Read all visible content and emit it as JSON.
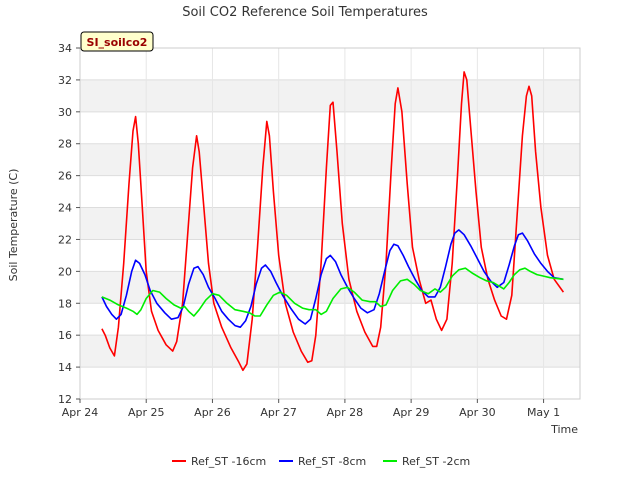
{
  "chart_data": {
    "type": "line",
    "title": "Soil CO2 Reference Soil Temperatures",
    "xlabel": "Time",
    "ylabel": "Soil Temperature (C)",
    "site_label": "SI_soilco2",
    "ylim": [
      12,
      34
    ],
    "yticks": [
      12,
      14,
      16,
      18,
      20,
      22,
      24,
      26,
      28,
      30,
      32,
      34
    ],
    "xlim": [
      0,
      7.55
    ],
    "xticks": [
      {
        "x": 0,
        "label": "Apr 24"
      },
      {
        "x": 1,
        "label": "Apr 25"
      },
      {
        "x": 2,
        "label": "Apr 26"
      },
      {
        "x": 3,
        "label": "Apr 27"
      },
      {
        "x": 4,
        "label": "Apr 28"
      },
      {
        "x": 5,
        "label": "Apr 29"
      },
      {
        "x": 6,
        "label": "Apr 30"
      },
      {
        "x": 7,
        "label": "May 1"
      }
    ],
    "grid": true,
    "legend_position": "bottom",
    "series": [
      {
        "name": "Ref_ST -16cm",
        "color": "#ff0000",
        "points": [
          [
            0.33,
            16.4
          ],
          [
            0.38,
            16.0
          ],
          [
            0.45,
            15.2
          ],
          [
            0.52,
            14.7
          ],
          [
            0.58,
            16.5
          ],
          [
            0.66,
            20.5
          ],
          [
            0.74,
            25.5
          ],
          [
            0.8,
            28.8
          ],
          [
            0.84,
            29.7
          ],
          [
            0.88,
            28.0
          ],
          [
            0.94,
            24.0
          ],
          [
            1.0,
            20.0
          ],
          [
            1.08,
            17.5
          ],
          [
            1.18,
            16.3
          ],
          [
            1.3,
            15.4
          ],
          [
            1.4,
            15.0
          ],
          [
            1.46,
            15.6
          ],
          [
            1.55,
            18.0
          ],
          [
            1.62,
            22.0
          ],
          [
            1.7,
            26.5
          ],
          [
            1.76,
            28.5
          ],
          [
            1.8,
            27.5
          ],
          [
            1.86,
            24.5
          ],
          [
            1.94,
            20.5
          ],
          [
            2.02,
            18.0
          ],
          [
            2.14,
            16.5
          ],
          [
            2.28,
            15.2
          ],
          [
            2.4,
            14.3
          ],
          [
            2.46,
            13.8
          ],
          [
            2.52,
            14.2
          ],
          [
            2.6,
            17.0
          ],
          [
            2.68,
            21.5
          ],
          [
            2.76,
            26.5
          ],
          [
            2.82,
            29.4
          ],
          [
            2.86,
            28.5
          ],
          [
            2.92,
            25.0
          ],
          [
            3.0,
            21.0
          ],
          [
            3.1,
            18.0
          ],
          [
            3.22,
            16.2
          ],
          [
            3.34,
            15.0
          ],
          [
            3.44,
            14.3
          ],
          [
            3.5,
            14.4
          ],
          [
            3.56,
            16.0
          ],
          [
            3.64,
            20.5
          ],
          [
            3.72,
            26.5
          ],
          [
            3.78,
            30.4
          ],
          [
            3.82,
            30.6
          ],
          [
            3.88,
            27.5
          ],
          [
            3.96,
            23.0
          ],
          [
            4.06,
            19.5
          ],
          [
            4.18,
            17.5
          ],
          [
            4.3,
            16.2
          ],
          [
            4.42,
            15.3
          ],
          [
            4.48,
            15.3
          ],
          [
            4.54,
            16.5
          ],
          [
            4.62,
            20.5
          ],
          [
            4.7,
            26.5
          ],
          [
            4.76,
            30.5
          ],
          [
            4.8,
            31.5
          ],
          [
            4.86,
            30.0
          ],
          [
            4.94,
            25.5
          ],
          [
            5.02,
            21.5
          ],
          [
            5.12,
            19.5
          ],
          [
            5.22,
            18.0
          ],
          [
            5.3,
            18.2
          ],
          [
            5.38,
            17.0
          ],
          [
            5.46,
            16.3
          ],
          [
            5.54,
            17.0
          ],
          [
            5.62,
            20.5
          ],
          [
            5.7,
            26.0
          ],
          [
            5.76,
            30.5
          ],
          [
            5.8,
            32.5
          ],
          [
            5.84,
            32.0
          ],
          [
            5.9,
            29.0
          ],
          [
            5.98,
            25.0
          ],
          [
            6.06,
            21.5
          ],
          [
            6.16,
            19.5
          ],
          [
            6.26,
            18.2
          ],
          [
            6.36,
            17.2
          ],
          [
            6.44,
            17.0
          ],
          [
            6.52,
            18.5
          ],
          [
            6.6,
            23.5
          ],
          [
            6.68,
            28.5
          ],
          [
            6.74,
            31.0
          ],
          [
            6.78,
            31.6
          ],
          [
            6.82,
            31.0
          ],
          [
            6.88,
            27.5
          ],
          [
            6.96,
            24.0
          ],
          [
            7.06,
            21.0
          ],
          [
            7.16,
            19.5
          ],
          [
            7.3,
            18.7
          ]
        ]
      },
      {
        "name": "Ref_ST -8cm",
        "color": "#0000ff",
        "points": [
          [
            0.33,
            18.4
          ],
          [
            0.4,
            17.8
          ],
          [
            0.48,
            17.3
          ],
          [
            0.55,
            17.0
          ],
          [
            0.62,
            17.3
          ],
          [
            0.7,
            18.5
          ],
          [
            0.78,
            20.0
          ],
          [
            0.84,
            20.7
          ],
          [
            0.9,
            20.5
          ],
          [
            0.98,
            19.8
          ],
          [
            1.06,
            18.8
          ],
          [
            1.16,
            18.0
          ],
          [
            1.28,
            17.4
          ],
          [
            1.38,
            17.0
          ],
          [
            1.48,
            17.1
          ],
          [
            1.56,
            17.8
          ],
          [
            1.64,
            19.2
          ],
          [
            1.72,
            20.2
          ],
          [
            1.78,
            20.3
          ],
          [
            1.86,
            19.8
          ],
          [
            1.94,
            19.0
          ],
          [
            2.04,
            18.3
          ],
          [
            2.14,
            17.5
          ],
          [
            2.24,
            17.0
          ],
          [
            2.34,
            16.6
          ],
          [
            2.42,
            16.5
          ],
          [
            2.5,
            16.9
          ],
          [
            2.58,
            17.8
          ],
          [
            2.66,
            19.2
          ],
          [
            2.74,
            20.2
          ],
          [
            2.8,
            20.4
          ],
          [
            2.88,
            20.0
          ],
          [
            2.96,
            19.3
          ],
          [
            3.06,
            18.5
          ],
          [
            3.18,
            17.7
          ],
          [
            3.3,
            17.0
          ],
          [
            3.4,
            16.7
          ],
          [
            3.48,
            17.0
          ],
          [
            3.56,
            18.3
          ],
          [
            3.64,
            19.8
          ],
          [
            3.72,
            20.8
          ],
          [
            3.78,
            21.0
          ],
          [
            3.86,
            20.6
          ],
          [
            3.94,
            19.8
          ],
          [
            4.04,
            19.0
          ],
          [
            4.14,
            18.3
          ],
          [
            4.24,
            17.7
          ],
          [
            4.34,
            17.4
          ],
          [
            4.44,
            17.6
          ],
          [
            4.52,
            18.6
          ],
          [
            4.6,
            20.0
          ],
          [
            4.68,
            21.3
          ],
          [
            4.74,
            21.7
          ],
          [
            4.8,
            21.6
          ],
          [
            4.88,
            21.0
          ],
          [
            4.96,
            20.3
          ],
          [
            5.06,
            19.5
          ],
          [
            5.16,
            18.8
          ],
          [
            5.26,
            18.4
          ],
          [
            5.36,
            18.4
          ],
          [
            5.44,
            19.0
          ],
          [
            5.52,
            20.3
          ],
          [
            5.6,
            21.7
          ],
          [
            5.66,
            22.4
          ],
          [
            5.72,
            22.6
          ],
          [
            5.8,
            22.3
          ],
          [
            5.9,
            21.6
          ],
          [
            6.0,
            20.8
          ],
          [
            6.1,
            20.0
          ],
          [
            6.2,
            19.4
          ],
          [
            6.3,
            19.0
          ],
          [
            6.4,
            19.3
          ],
          [
            6.48,
            20.4
          ],
          [
            6.56,
            21.6
          ],
          [
            6.62,
            22.3
          ],
          [
            6.68,
            22.4
          ],
          [
            6.76,
            21.9
          ],
          [
            6.86,
            21.1
          ],
          [
            6.96,
            20.5
          ],
          [
            7.06,
            20.0
          ],
          [
            7.16,
            19.6
          ],
          [
            7.3,
            19.5
          ]
        ]
      },
      {
        "name": "Ref_ST -2cm",
        "color": "#00ee00",
        "points": [
          [
            0.33,
            18.4
          ],
          [
            0.45,
            18.2
          ],
          [
            0.58,
            17.9
          ],
          [
            0.7,
            17.7
          ],
          [
            0.8,
            17.5
          ],
          [
            0.86,
            17.3
          ],
          [
            0.92,
            17.6
          ],
          [
            1.0,
            18.3
          ],
          [
            1.1,
            18.8
          ],
          [
            1.2,
            18.7
          ],
          [
            1.3,
            18.3
          ],
          [
            1.42,
            17.9
          ],
          [
            1.52,
            17.7
          ],
          [
            1.58,
            17.8
          ],
          [
            1.64,
            17.5
          ],
          [
            1.72,
            17.2
          ],
          [
            1.8,
            17.6
          ],
          [
            1.9,
            18.2
          ],
          [
            2.0,
            18.6
          ],
          [
            2.1,
            18.5
          ],
          [
            2.22,
            18.0
          ],
          [
            2.34,
            17.6
          ],
          [
            2.46,
            17.5
          ],
          [
            2.56,
            17.4
          ],
          [
            2.64,
            17.2
          ],
          [
            2.72,
            17.2
          ],
          [
            2.82,
            17.9
          ],
          [
            2.92,
            18.5
          ],
          [
            3.02,
            18.7
          ],
          [
            3.12,
            18.5
          ],
          [
            3.24,
            18.0
          ],
          [
            3.36,
            17.7
          ],
          [
            3.46,
            17.6
          ],
          [
            3.56,
            17.6
          ],
          [
            3.64,
            17.3
          ],
          [
            3.72,
            17.5
          ],
          [
            3.82,
            18.3
          ],
          [
            3.94,
            18.9
          ],
          [
            4.04,
            19.0
          ],
          [
            4.14,
            18.7
          ],
          [
            4.26,
            18.2
          ],
          [
            4.38,
            18.1
          ],
          [
            4.46,
            18.1
          ],
          [
            4.54,
            17.8
          ],
          [
            4.62,
            17.9
          ],
          [
            4.72,
            18.8
          ],
          [
            4.84,
            19.4
          ],
          [
            4.94,
            19.5
          ],
          [
            5.04,
            19.2
          ],
          [
            5.14,
            18.8
          ],
          [
            5.26,
            18.6
          ],
          [
            5.36,
            18.9
          ],
          [
            5.44,
            18.7
          ],
          [
            5.52,
            19.0
          ],
          [
            5.62,
            19.7
          ],
          [
            5.72,
            20.1
          ],
          [
            5.82,
            20.2
          ],
          [
            5.92,
            19.9
          ],
          [
            6.04,
            19.6
          ],
          [
            6.14,
            19.4
          ],
          [
            6.24,
            19.3
          ],
          [
            6.32,
            19.1
          ],
          [
            6.4,
            18.9
          ],
          [
            6.48,
            19.3
          ],
          [
            6.56,
            19.8
          ],
          [
            6.64,
            20.1
          ],
          [
            6.72,
            20.2
          ],
          [
            6.8,
            20.0
          ],
          [
            6.9,
            19.8
          ],
          [
            7.0,
            19.7
          ],
          [
            7.1,
            19.6
          ],
          [
            7.3,
            19.5
          ]
        ]
      }
    ]
  }
}
